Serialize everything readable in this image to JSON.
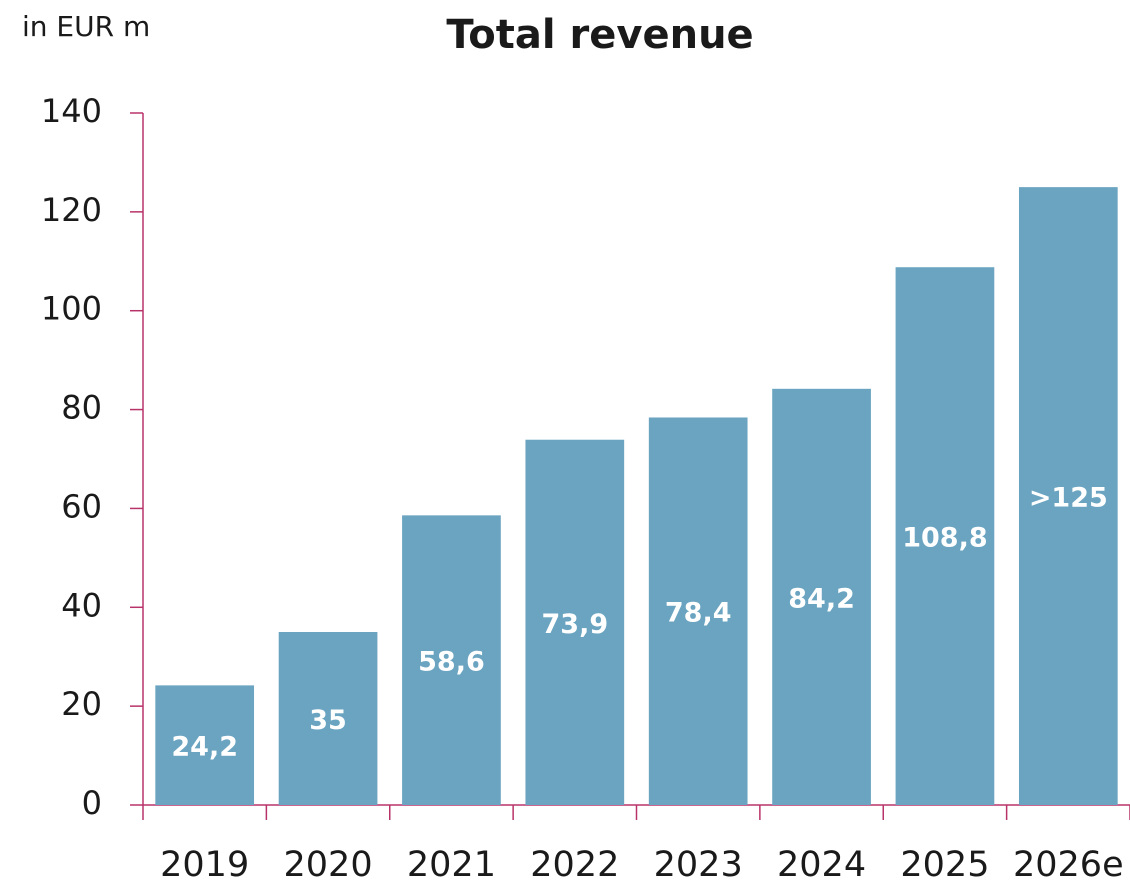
{
  "chart_data": {
    "type": "bar",
    "title": "Total revenue",
    "y_label": "in EUR m",
    "categories": [
      "2019",
      "2020",
      "2021",
      "2022",
      "2023",
      "2024",
      "2025",
      "2026e"
    ],
    "values": [
      24.2,
      35,
      58.6,
      73.9,
      78.4,
      84.2,
      108.8,
      125
    ],
    "value_labels": [
      "24,2",
      "35",
      "58,6",
      "73,9",
      "78,4",
      "84,2",
      "108,8",
      ">125"
    ],
    "color": "#6aa4c1",
    "ylim": [
      0,
      140
    ],
    "yticks": [
      0,
      20,
      40,
      60,
      80,
      100,
      120,
      140
    ],
    "grid": false
  }
}
